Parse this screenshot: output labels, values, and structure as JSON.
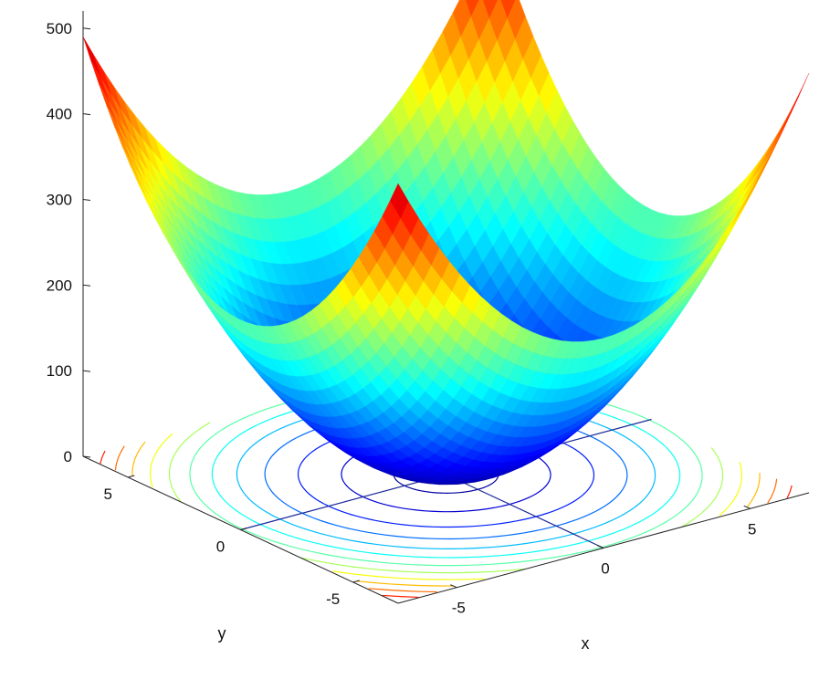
{
  "chart_data": {
    "type": "surface3d",
    "function": "z = 5*(x^2 + y^2)",
    "x_range": [
      -7,
      7
    ],
    "y_range": [
      -7,
      7
    ],
    "z_range": [
      0,
      520
    ],
    "grid": false,
    "colormap": [
      "#00008f",
      "#0000ff",
      "#0080ff",
      "#00ffff",
      "#80ff80",
      "#ffff00",
      "#ff8000",
      "#ff0000",
      "#800000"
    ],
    "contour_levels": [
      10,
      40,
      80,
      120,
      160,
      200,
      240,
      280,
      320,
      360,
      400,
      440,
      480
    ],
    "contour_on_floor": true,
    "axes": {
      "x": {
        "label": "x",
        "ticks": [
          "-5",
          "0",
          "5"
        ],
        "tick_values": [
          -5,
          0,
          5
        ]
      },
      "y": {
        "label": "y",
        "ticks": [
          "-5",
          "0",
          "5"
        ],
        "tick_values": [
          -5,
          0,
          5
        ]
      },
      "z": {
        "label": "",
        "ticks": [
          "0",
          "100",
          "200",
          "300",
          "400",
          "500"
        ],
        "tick_values": [
          0,
          100,
          200,
          300,
          400,
          500
        ]
      }
    }
  }
}
